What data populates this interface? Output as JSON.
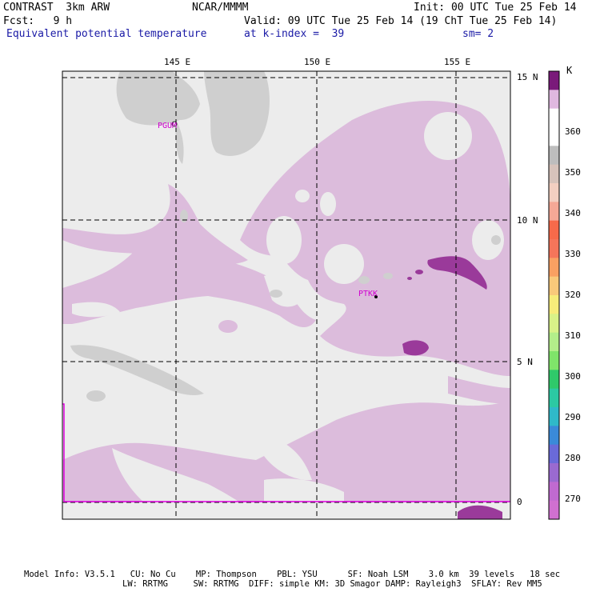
{
  "header": {
    "model": "CONTRAST  3km ARW",
    "source": "NCAR/MMMM",
    "init": "Init: 00 UTC Tue 25 Feb 14",
    "fcst": "Fcst:   9 h",
    "valid": "Valid: 09 UTC Tue 25 Feb 14 (19 ChT Tue 25 Feb 14)",
    "field": "Equivalent potential temperature",
    "level": "at k-index =  39",
    "smooth": "sm= 2"
  },
  "map": {
    "lon_labels": [
      "145 E",
      "150 E",
      "155 E"
    ],
    "lat_labels": [
      "15 N",
      "10 N",
      "5 N",
      "0"
    ],
    "stations": [
      "PGUM",
      "PTKK"
    ],
    "colors": {
      "background": "#ececec",
      "lilac": "#dcbcdc",
      "gray": "#cfcfcf",
      "purple": "#9a3a9a"
    }
  },
  "colorbar": {
    "unit": "K",
    "ticks": [
      "360",
      "350",
      "340",
      "330",
      "320",
      "310",
      "300",
      "290",
      "280",
      "270"
    ],
    "swatches": [
      "#ffffff",
      "#e0b8e0",
      "#ffffff",
      "#ffffff",
      "#bdbdbd",
      "#d7c3bb",
      "#f3cfc1",
      "#f5a896",
      "#f76a4a",
      "#f5755a",
      "#f9a062",
      "#f9c97a",
      "#f7ec7a",
      "#d9f288",
      "#b3ee8a",
      "#7fe46a",
      "#2fc96a",
      "#2cc9a3",
      "#2fb9c9",
      "#3a8ad9",
      "#6a6ad9",
      "#9a6ad0",
      "#c06ad0",
      "#d070d0"
    ]
  },
  "footer": {
    "line1": "Model Info: V3.5.1   CU: No Cu    MP: Thompson    PBL: YSU      SF: Noah LSM    3.0 km  39 levels   18 sec",
    "line2": "LW: RRTMG     SW: RRTMG  DIFF: simple KM: 3D Smagor DAMP: Rayleigh3  SFLAY: Rev MM5"
  }
}
